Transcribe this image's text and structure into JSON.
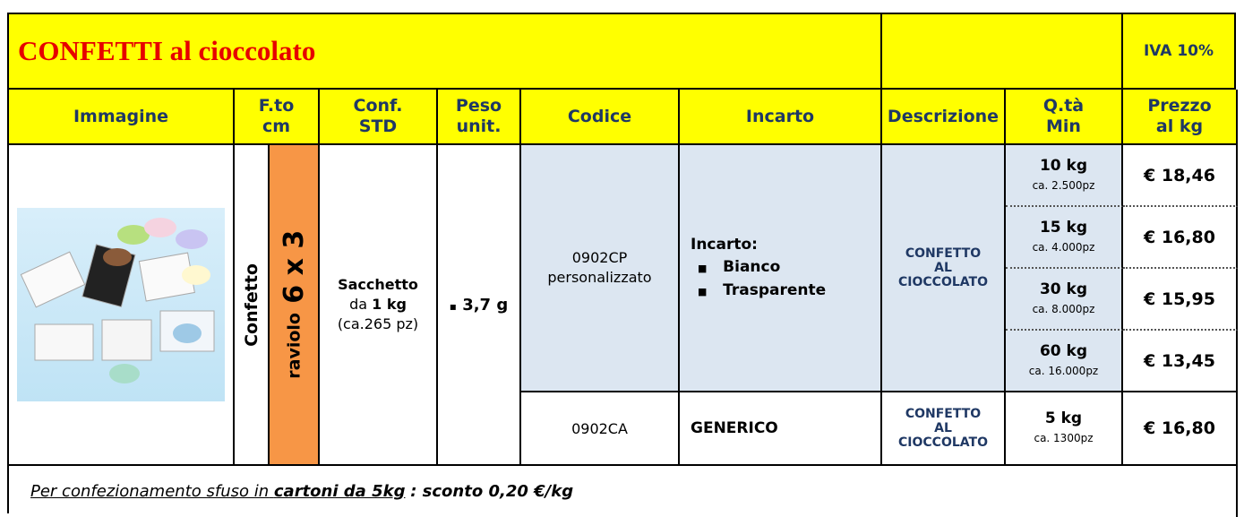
{
  "title": "CONFETTI al cioccolato",
  "vat": "IVA 10%",
  "headers": [
    [
      "Immagine"
    ],
    [
      "F.to",
      "cm"
    ],
    [
      "Conf.",
      "STD"
    ],
    [
      "Peso",
      "unit."
    ],
    [
      "Codice"
    ],
    [
      "Incarto"
    ],
    [
      "Descrizione"
    ],
    [
      "Q.tà",
      "Min"
    ],
    [
      "Prezzo",
      "al kg"
    ]
  ],
  "product": {
    "type": "Confetto",
    "format_name": "raviolo",
    "format_size": "6 x 3",
    "package": {
      "name": "Sacchetto",
      "prefix": "da",
      "weight": "1 kg",
      "pieces": "(ca.265 pz)"
    },
    "unit_weight": "3,7 g"
  },
  "rows": [
    {
      "code": "0902CP",
      "code_note": "personalizzato",
      "wrapping": "Incarto:",
      "wrapping_options": [
        "Bianco",
        "Trasparente"
      ],
      "description": [
        "CONFETTO",
        "AL",
        "CIOCCOLATO"
      ],
      "tiers": [
        {
          "qty": "10 kg",
          "pieces": "ca. 2.500pz",
          "price": "€ 18,46"
        },
        {
          "qty": "15 kg",
          "pieces": "ca. 4.000pz",
          "price": "€ 16,80"
        },
        {
          "qty": "30 kg",
          "pieces": "ca. 8.000pz",
          "price": "€ 15,95"
        },
        {
          "qty": "60 kg",
          "pieces": "ca. 16.000pz",
          "price": "€ 13,45"
        }
      ]
    },
    {
      "code": "0902CA",
      "wrapping": "GENERICO",
      "description": [
        "CONFETTO",
        "AL",
        "CIOCCOLATO"
      ],
      "tiers": [
        {
          "qty": "5 kg",
          "pieces": "ca. 1300pz",
          "price": "€ 16,80"
        }
      ]
    }
  ],
  "footer": {
    "lead": "Per confezionamento sfuso in",
    "highlight": "cartoni da 5kg",
    "tail": ": sconto 0,20 €/kg"
  }
}
